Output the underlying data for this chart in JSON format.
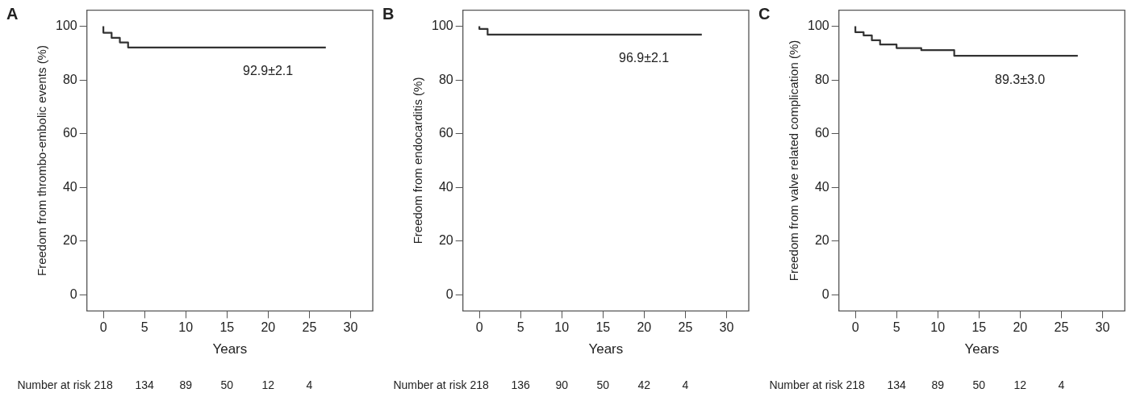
{
  "chart_data": [
    {
      "type": "step",
      "title": "A",
      "xlabel": "Years",
      "ylabel": "Freedom from thrombo-embolic events (%)",
      "x": [
        0,
        1,
        2,
        3,
        12,
        27
      ],
      "values": [
        100,
        97.6,
        95.7,
        94,
        92.1,
        92.1
      ],
      "color": "#333333",
      "marker": "none",
      "xlim": [
        -2,
        32.7
      ],
      "ylim": [
        -6,
        106
      ],
      "xticks": [
        0,
        5,
        10,
        15,
        20,
        25,
        30
      ],
      "yticks": [
        0,
        20,
        40,
        60,
        80,
        100
      ],
      "annotations": [
        "92.9±2.1",
        "Number at risk",
        "218",
        "134",
        "89",
        "50",
        "12",
        "4"
      ]
    },
    {
      "type": "step",
      "title": "B",
      "xlabel": "Years",
      "ylabel": "Freedom from endocarditis (%)",
      "x": [
        0,
        1,
        15,
        27
      ],
      "values": [
        100,
        99,
        96.9,
        96.9
      ],
      "color": "#333333",
      "marker": "none",
      "xlim": [
        -2,
        32.7
      ],
      "ylim": [
        -6,
        106
      ],
      "xticks": [
        0,
        5,
        10,
        15,
        20,
        25,
        30
      ],
      "yticks": [
        0,
        20,
        40,
        60,
        80,
        100
      ],
      "annotations": [
        "96.9±2.1",
        "Number at risk",
        "218",
        "136",
        "90",
        "50",
        "42",
        "4"
      ]
    },
    {
      "type": "step",
      "title": "C",
      "xlabel": "Years",
      "ylabel": "Freedom from valve related complication (%)",
      "x": [
        0,
        1,
        2,
        3,
        5,
        8,
        12,
        15,
        27
      ],
      "values": [
        100,
        97.8,
        96.6,
        94.8,
        93.2,
        91.9,
        91.1,
        89,
        89
      ],
      "color": "#333333",
      "marker": "none",
      "xlim": [
        -2,
        32.7
      ],
      "ylim": [
        -6,
        106
      ],
      "xticks": [
        0,
        5,
        10,
        15,
        20,
        25,
        30
      ],
      "yticks": [
        0,
        20,
        40,
        60,
        80,
        100
      ],
      "annotations": [
        "89.3±3.0",
        "Number at risk",
        "218",
        "134",
        "89",
        "50",
        "12",
        "4"
      ]
    }
  ]
}
